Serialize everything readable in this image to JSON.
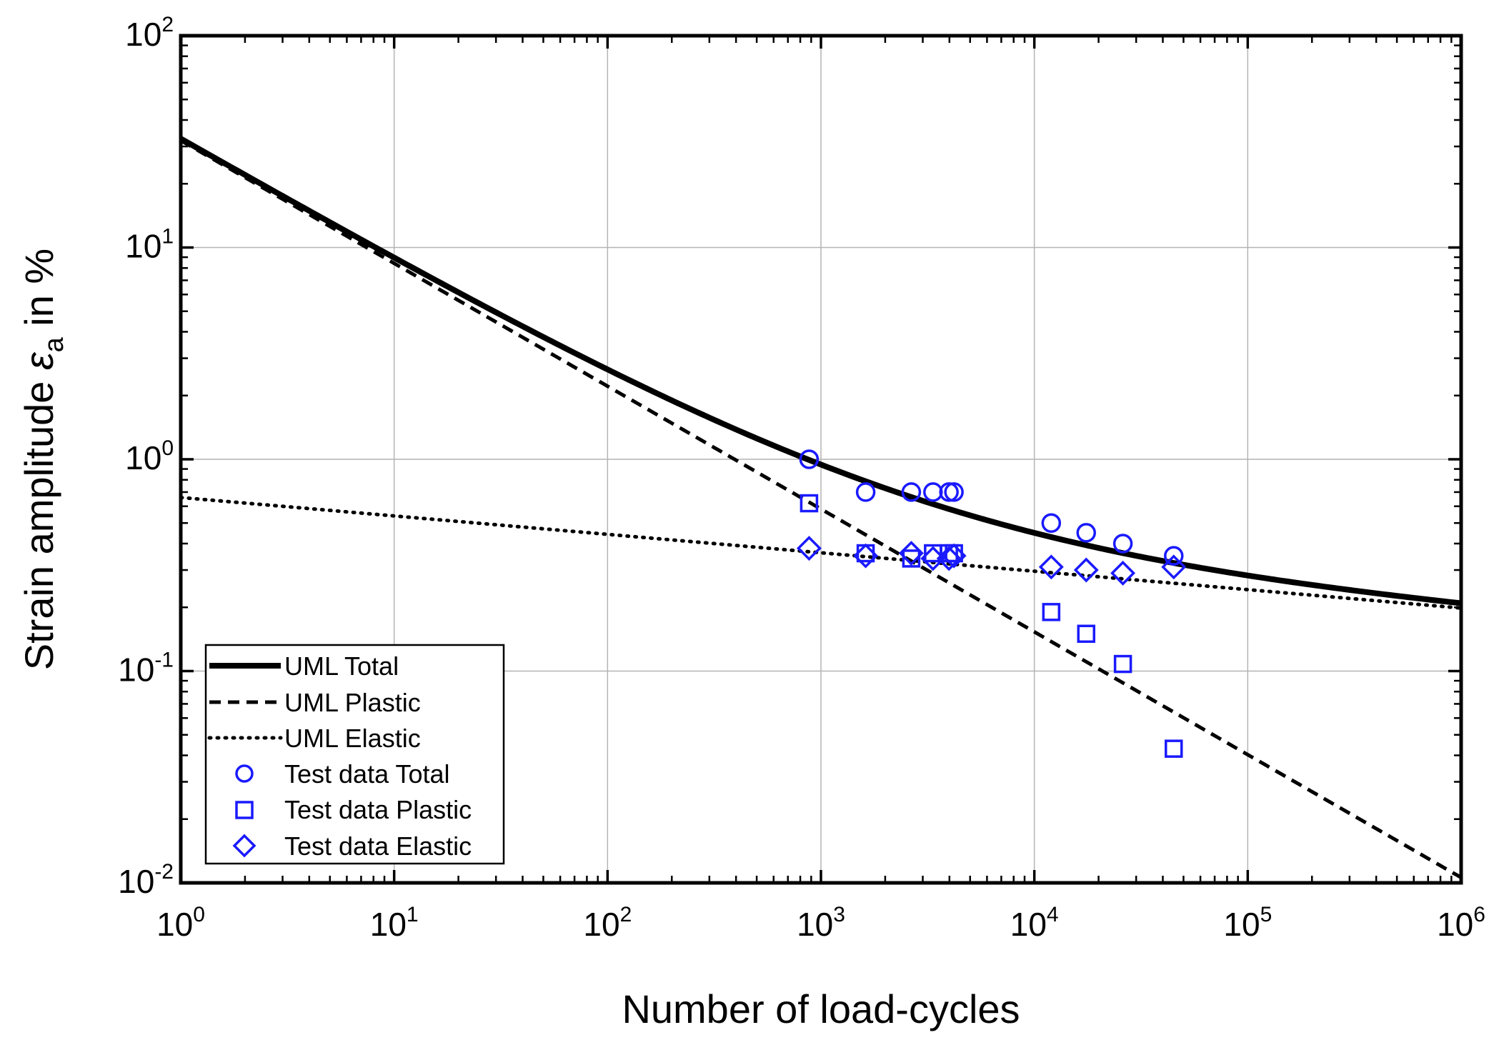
{
  "chart_data": {
    "type": "line",
    "title": "",
    "xlabel": "Number of load-cycles",
    "ylabel": {
      "prefix": "Strain amplitude ",
      "symbol": "ε",
      "subscript": "a",
      "suffix": " in %"
    },
    "x_scale": "log",
    "y_scale": "log",
    "xlim": [
      1,
      1000000
    ],
    "ylim": [
      0.01,
      100
    ],
    "grid": true,
    "x_ticks": [
      {
        "base": "10",
        "exp": "0",
        "value": 1
      },
      {
        "base": "10",
        "exp": "1",
        "value": 10
      },
      {
        "base": "10",
        "exp": "2",
        "value": 100
      },
      {
        "base": "10",
        "exp": "3",
        "value": 1000
      },
      {
        "base": "10",
        "exp": "4",
        "value": 10000
      },
      {
        "base": "10",
        "exp": "5",
        "value": 100000
      },
      {
        "base": "10",
        "exp": "6",
        "value": 1000000
      }
    ],
    "y_ticks": [
      {
        "base": "10",
        "exp": "-2",
        "value": 0.01
      },
      {
        "base": "10",
        "exp": "-1",
        "value": 0.1
      },
      {
        "base": "10",
        "exp": "0",
        "value": 1
      },
      {
        "base": "10",
        "exp": "1",
        "value": 10
      },
      {
        "base": "10",
        "exp": "2",
        "value": 100
      }
    ],
    "curves": [
      {
        "name": "UML Total",
        "style": "solid",
        "color": "#000000",
        "kind": "total"
      },
      {
        "name": "UML Plastic",
        "style": "dashed",
        "color": "#000000",
        "kind": "plastic",
        "coef": 32.0,
        "exponent": -0.58
      },
      {
        "name": "UML Elastic",
        "style": "dotted",
        "color": "#000000",
        "kind": "elastic",
        "coef": 0.66,
        "exponent": -0.087
      }
    ],
    "series": [
      {
        "name": "Test data Total",
        "marker": "circle",
        "color": "#1a1aff",
        "points": [
          [
            880,
            1.0
          ],
          [
            1620,
            0.7
          ],
          [
            2650,
            0.7
          ],
          [
            3350,
            0.7
          ],
          [
            3980,
            0.7
          ],
          [
            4200,
            0.7
          ],
          [
            12000,
            0.5
          ],
          [
            17500,
            0.45
          ],
          [
            26000,
            0.4
          ],
          [
            45000,
            0.35
          ]
        ]
      },
      {
        "name": "Test data Plastic",
        "marker": "square",
        "color": "#1a1aff",
        "points": [
          [
            880,
            0.62
          ],
          [
            1620,
            0.36
          ],
          [
            2650,
            0.34
          ],
          [
            3350,
            0.36
          ],
          [
            3980,
            0.36
          ],
          [
            4200,
            0.36
          ],
          [
            12000,
            0.19
          ],
          [
            17500,
            0.15
          ],
          [
            26000,
            0.108
          ],
          [
            45000,
            0.043
          ]
        ]
      },
      {
        "name": "Test data Elastic",
        "marker": "diamond",
        "color": "#1a1aff",
        "points": [
          [
            880,
            0.38
          ],
          [
            1620,
            0.35
          ],
          [
            2650,
            0.36
          ],
          [
            3350,
            0.34
          ],
          [
            3980,
            0.34
          ],
          [
            4200,
            0.35
          ],
          [
            12000,
            0.31
          ],
          [
            17500,
            0.3
          ],
          [
            26000,
            0.29
          ],
          [
            45000,
            0.31
          ]
        ]
      }
    ],
    "legend_position": "bottom-left"
  }
}
